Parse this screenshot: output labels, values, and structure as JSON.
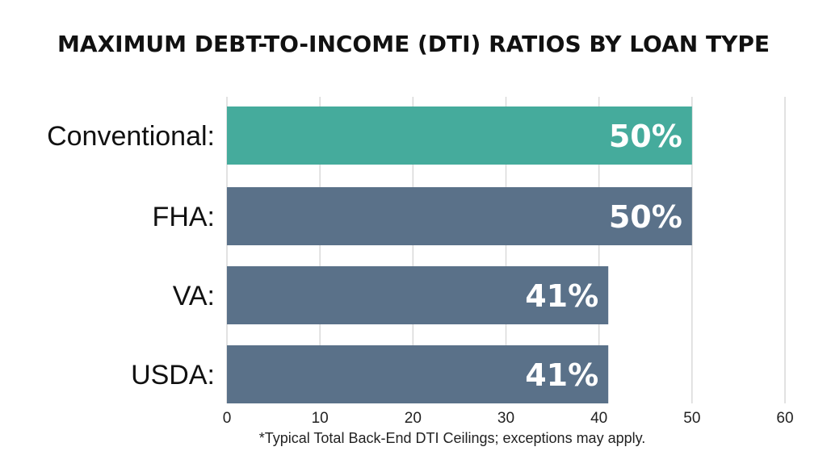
{
  "chart_data": {
    "type": "bar",
    "orientation": "horizontal",
    "title": "MAXIMUM DEBT-TO-INCOME (DTI) RATIOS BY LOAN TYPE",
    "categories": [
      "Conventional:",
      "FHA:",
      "VA:",
      "USDA:"
    ],
    "values": [
      50,
      50,
      41,
      41
    ],
    "value_labels": [
      "50%",
      "50%",
      "41%",
      "41%"
    ],
    "bar_colors": [
      "#45AB9C",
      "#5A7189",
      "#5A7189",
      "#5A7189"
    ],
    "xlim": [
      0,
      60
    ],
    "x_ticks": [
      0,
      10,
      20,
      30,
      40,
      50,
      60
    ],
    "x_tick_labels": [
      "0",
      "10",
      "20",
      "30",
      "40",
      "50",
      "60"
    ],
    "grid": true,
    "xlabel": "",
    "ylabel": "",
    "footnote": "*Typical Total Back-End DTI Ceilings; exceptions may apply."
  }
}
